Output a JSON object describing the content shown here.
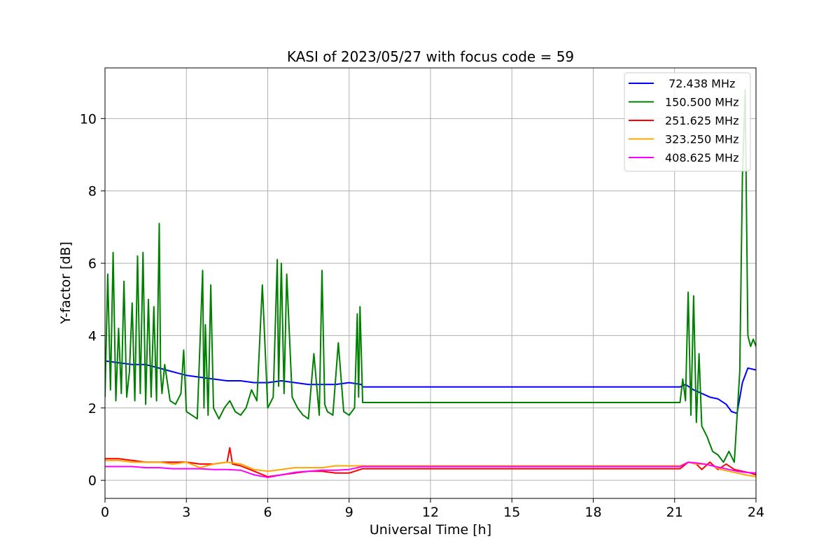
{
  "chart_data": {
    "type": "line",
    "title": "KASI of 2023/05/27 with focus code = 59",
    "xlabel": "Universal Time [h]",
    "ylabel": "Y-factor [dB]",
    "xlim": [
      0,
      24
    ],
    "ylim": [
      -0.5,
      11.4
    ],
    "xticks": [
      0,
      3,
      6,
      9,
      12,
      15,
      18,
      21,
      24
    ],
    "yticks": [
      0,
      2,
      4,
      6,
      8,
      10
    ],
    "grid": true,
    "legend_position": "top-right",
    "series": [
      {
        "name": " 72.438 MHz",
        "color": "#0000ff",
        "x": [
          0,
          0.5,
          1,
          1.5,
          2,
          2.5,
          3,
          3.5,
          4,
          4.5,
          5,
          5.5,
          6,
          6.5,
          7,
          7.5,
          8,
          8.5,
          9,
          9.45,
          9.5,
          21.2,
          21.4,
          21.7,
          22,
          22.3,
          22.6,
          22.9,
          23.1,
          23.3,
          23.5,
          23.7,
          24
        ],
        "y": [
          3.3,
          3.25,
          3.2,
          3.2,
          3.1,
          3.0,
          2.9,
          2.85,
          2.8,
          2.75,
          2.75,
          2.7,
          2.7,
          2.75,
          2.7,
          2.65,
          2.65,
          2.65,
          2.7,
          2.65,
          2.58,
          2.58,
          2.65,
          2.5,
          2.4,
          2.3,
          2.25,
          2.1,
          1.9,
          1.85,
          2.7,
          3.1,
          3.05
        ]
      },
      {
        "name": "150.500 MHz",
        "color": "#008000",
        "x": [
          0,
          0.1,
          0.2,
          0.3,
          0.4,
          0.5,
          0.6,
          0.7,
          0.8,
          0.9,
          1.0,
          1.1,
          1.2,
          1.3,
          1.4,
          1.5,
          1.6,
          1.7,
          1.8,
          1.9,
          2.0,
          2.05,
          2.1,
          2.2,
          2.4,
          2.6,
          2.8,
          2.9,
          3.0,
          3.2,
          3.4,
          3.6,
          3.65,
          3.7,
          3.8,
          3.9,
          4.0,
          4.2,
          4.4,
          4.6,
          4.8,
          5.0,
          5.2,
          5.4,
          5.6,
          5.8,
          6.0,
          6.2,
          6.35,
          6.4,
          6.5,
          6.6,
          6.7,
          6.9,
          7.1,
          7.3,
          7.5,
          7.7,
          7.9,
          8.0,
          8.1,
          8.2,
          8.4,
          8.6,
          8.8,
          9.0,
          9.2,
          9.3,
          9.35,
          9.4,
          9.5,
          21.2,
          21.3,
          21.4,
          21.5,
          21.6,
          21.7,
          21.8,
          21.9,
          22.0,
          22.2,
          22.4,
          22.6,
          22.8,
          23.0,
          23.2,
          23.4,
          23.5,
          23.6,
          23.7,
          23.8,
          23.9,
          24
        ],
        "y": [
          2.3,
          5.7,
          2.5,
          6.3,
          2.2,
          4.2,
          2.4,
          5.5,
          2.3,
          3.0,
          4.9,
          2.2,
          6.2,
          2.4,
          6.3,
          2.1,
          5.0,
          2.3,
          4.8,
          2.2,
          7.1,
          3.0,
          2.4,
          3.2,
          2.2,
          2.1,
          2.4,
          3.6,
          1.9,
          1.8,
          1.7,
          5.8,
          2.0,
          4.3,
          1.8,
          5.4,
          2.0,
          1.7,
          2.0,
          2.2,
          1.9,
          1.8,
          2.0,
          2.5,
          2.2,
          5.4,
          2.0,
          2.3,
          6.1,
          2.6,
          6.0,
          2.4,
          5.7,
          2.3,
          2.0,
          1.8,
          1.7,
          3.5,
          1.8,
          5.8,
          2.1,
          1.9,
          1.8,
          3.8,
          1.9,
          1.8,
          2.0,
          4.6,
          2.3,
          4.8,
          2.15,
          2.15,
          2.8,
          2.2,
          5.2,
          1.8,
          5.1,
          1.6,
          3.5,
          1.5,
          1.2,
          0.8,
          0.7,
          0.5,
          0.8,
          0.5,
          3.0,
          8.4,
          10.8,
          4.0,
          3.7,
          3.9,
          3.7
        ]
      },
      {
        "name": "251.625 MHz",
        "color": "#ff0000",
        "x": [
          0,
          0.5,
          1,
          1.5,
          2,
          2.5,
          3,
          3.5,
          4,
          4.5,
          4.6,
          4.7,
          5,
          5.5,
          6,
          6.5,
          7,
          7.5,
          8,
          8.5,
          9,
          9.5,
          21.2,
          21.5,
          21.8,
          22,
          22.3,
          22.6,
          22.9,
          23.2,
          23.5,
          23.8,
          24
        ],
        "y": [
          0.6,
          0.6,
          0.55,
          0.5,
          0.5,
          0.5,
          0.5,
          0.45,
          0.45,
          0.5,
          0.9,
          0.45,
          0.4,
          0.25,
          0.1,
          0.15,
          0.2,
          0.25,
          0.25,
          0.2,
          0.2,
          0.32,
          0.32,
          0.5,
          0.45,
          0.3,
          0.5,
          0.3,
          0.45,
          0.3,
          0.25,
          0.2,
          0.15
        ]
      },
      {
        "name": "323.250 MHz",
        "color": "#ffa500",
        "x": [
          0,
          0.5,
          1,
          1.5,
          2,
          2.5,
          3,
          3.5,
          4,
          4.5,
          5,
          5.5,
          6,
          6.5,
          7,
          7.5,
          8,
          8.5,
          9,
          9.5,
          21.2,
          21.5,
          21.8,
          22.1,
          22.4,
          22.7,
          23,
          23.3,
          23.6,
          24
        ],
        "y": [
          0.55,
          0.55,
          0.5,
          0.5,
          0.5,
          0.45,
          0.5,
          0.35,
          0.45,
          0.5,
          0.45,
          0.3,
          0.25,
          0.3,
          0.35,
          0.35,
          0.35,
          0.4,
          0.4,
          0.4,
          0.4,
          0.5,
          0.45,
          0.45,
          0.4,
          0.3,
          0.25,
          0.2,
          0.15,
          0.1
        ]
      },
      {
        "name": "408.625 MHz",
        "color": "#ff00ff",
        "x": [
          0,
          0.5,
          1,
          1.5,
          2,
          2.5,
          3,
          3.5,
          4,
          4.5,
          5,
          5.5,
          6,
          6.5,
          7,
          7.5,
          8,
          8.5,
          9,
          9.5,
          21.2,
          21.5,
          21.8,
          22.1,
          22.4,
          22.7,
          23,
          23.3,
          23.6,
          24
        ],
        "y": [
          0.38,
          0.38,
          0.38,
          0.35,
          0.35,
          0.32,
          0.32,
          0.32,
          0.3,
          0.3,
          0.28,
          0.15,
          0.08,
          0.15,
          0.22,
          0.25,
          0.28,
          0.28,
          0.3,
          0.38,
          0.38,
          0.5,
          0.48,
          0.45,
          0.4,
          0.35,
          0.3,
          0.25,
          0.22,
          0.2
        ]
      }
    ]
  }
}
